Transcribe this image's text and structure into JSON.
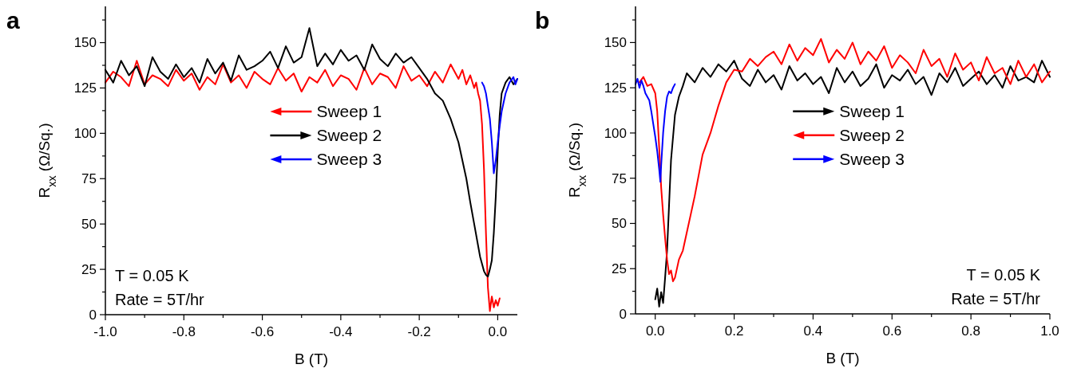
{
  "chart_data": [
    {
      "type": "line",
      "title": "a",
      "xlabel": "B (T)",
      "ylabel": "R$_{xx}$ (Ω/Sq.)",
      "xlim": [
        -1.0,
        0.05
      ],
      "ylim": [
        0,
        170
      ],
      "xticks": [
        {
          "value": -1.0,
          "label": "-1.0"
        },
        {
          "value": -0.9,
          "label": null
        },
        {
          "value": -0.8,
          "label": "-0.8"
        },
        {
          "value": -0.7,
          "label": null
        },
        {
          "value": -0.6,
          "label": "-0.6"
        },
        {
          "value": -0.5,
          "label": null
        },
        {
          "value": -0.4,
          "label": "-0.4"
        },
        {
          "value": -0.3,
          "label": null
        },
        {
          "value": -0.2,
          "label": "-0.2"
        },
        {
          "value": -0.1,
          "label": null
        },
        {
          "value": 0,
          "label": "0.0"
        }
      ],
      "yticks": [
        0,
        {
          "value": 12.5,
          "label": null
        },
        25,
        {
          "value": 37.5,
          "label": null
        },
        50,
        {
          "value": 62.5,
          "label": null
        },
        75,
        {
          "value": 87.5,
          "label": null
        },
        100,
        {
          "value": 112.5,
          "label": null
        },
        125,
        {
          "value": 137.5,
          "label": null
        },
        150,
        {
          "value": 162.5,
          "label": null
        }
      ],
      "legend": "center right",
      "annotations": [
        "T = 0.05 K",
        "Rate = 5T/hr"
      ],
      "series": [
        {
          "name": "Sweep 1",
          "color": "#ff0000",
          "x": [
            0.005,
            0,
            -0.005,
            -0.01,
            -0.015,
            -0.02,
            -0.025,
            -0.03,
            -0.035,
            -0.04,
            -0.045,
            -0.05,
            -0.055,
            -0.06,
            -0.07,
            -0.08,
            -0.09,
            -0.1,
            -0.12,
            -0.14,
            -0.16,
            -0.18,
            -0.2,
            -0.22,
            -0.24,
            -0.26,
            -0.28,
            -0.3,
            -0.32,
            -0.34,
            -0.36,
            -0.38,
            -0.4,
            -0.42,
            -0.44,
            -0.46,
            -0.48,
            -0.5,
            -0.52,
            -0.54,
            -0.56,
            -0.58,
            -0.6,
            -0.62,
            -0.64,
            -0.66,
            -0.68,
            -0.7,
            -0.72,
            -0.74,
            -0.76,
            -0.78,
            -0.8,
            -0.82,
            -0.84,
            -0.86,
            -0.88,
            -0.9,
            -0.92,
            -0.94,
            -0.96,
            -0.98,
            -1.0
          ],
          "values": [
            9,
            5,
            8,
            4,
            10,
            2,
            15,
            45,
            80,
            105,
            118,
            122,
            128,
            125,
            132,
            127,
            135,
            130,
            138,
            128,
            134,
            126,
            132,
            129,
            137,
            125,
            131,
            133,
            127,
            136,
            124,
            130,
            132,
            126,
            135,
            128,
            131,
            123,
            133,
            129,
            136,
            127,
            130,
            134,
            125,
            132,
            128,
            138,
            127,
            131,
            124,
            133,
            129,
            135,
            126,
            130,
            132,
            127,
            140,
            126,
            131,
            134,
            128
          ]
        },
        {
          "name": "Sweep 2",
          "color": "#000000",
          "x": [
            -1.0,
            -0.98,
            -0.96,
            -0.94,
            -0.92,
            -0.9,
            -0.88,
            -0.86,
            -0.84,
            -0.82,
            -0.8,
            -0.78,
            -0.76,
            -0.74,
            -0.72,
            -0.7,
            -0.68,
            -0.66,
            -0.64,
            -0.62,
            -0.6,
            -0.58,
            -0.56,
            -0.54,
            -0.52,
            -0.5,
            -0.48,
            -0.46,
            -0.44,
            -0.42,
            -0.4,
            -0.38,
            -0.36,
            -0.34,
            -0.32,
            -0.3,
            -0.28,
            -0.26,
            -0.24,
            -0.22,
            -0.2,
            -0.18,
            -0.16,
            -0.14,
            -0.12,
            -0.1,
            -0.09,
            -0.08,
            -0.07,
            -0.06,
            -0.05,
            -0.045,
            -0.04,
            -0.035,
            -0.03,
            -0.025,
            -0.02,
            -0.015,
            -0.01,
            -0.005,
            0,
            0.005,
            0.01,
            0.02,
            0.03,
            0.04,
            0.05
          ],
          "values": [
            135,
            128,
            140,
            132,
            137,
            126,
            142,
            134,
            130,
            138,
            131,
            136,
            128,
            141,
            133,
            139,
            129,
            143,
            135,
            137,
            140,
            145,
            136,
            148,
            139,
            142,
            158,
            137,
            144,
            138,
            146,
            140,
            143,
            135,
            149,
            141,
            137,
            144,
            139,
            142,
            136,
            130,
            122,
            118,
            108,
            95,
            85,
            75,
            62,
            50,
            38,
            32,
            28,
            24,
            22,
            21,
            25,
            30,
            45,
            65,
            90,
            110,
            122,
            128,
            131,
            127,
            130
          ]
        },
        {
          "name": "Sweep 3",
          "color": "#0000ff",
          "x": [
            0.05,
            0.045,
            0.04,
            0.03,
            0.02,
            0.01,
            0.005,
            0,
            -0.005,
            -0.01,
            -0.015,
            -0.02,
            -0.025,
            -0.03,
            -0.035,
            -0.04
          ],
          "values": [
            130,
            127,
            131,
            128,
            122,
            112,
            104,
            95,
            85,
            78,
            95,
            108,
            115,
            122,
            126,
            128
          ]
        }
      ]
    },
    {
      "type": "line",
      "title": "b",
      "xlabel": "B (T)",
      "ylabel": "R$_{xx}$ (Ω/Sq.)",
      "xlim": [
        -0.05,
        1.0
      ],
      "ylim": [
        0,
        170
      ],
      "xticks": [
        {
          "value": 0,
          "label": "0.0"
        },
        {
          "value": 0.1,
          "label": null
        },
        {
          "value": 0.2,
          "label": "0.2"
        },
        {
          "value": 0.3,
          "label": null
        },
        {
          "value": 0.4,
          "label": "0.4"
        },
        {
          "value": 0.5,
          "label": null
        },
        {
          "value": 0.6,
          "label": "0.6"
        },
        {
          "value": 0.7,
          "label": null
        },
        {
          "value": 0.8,
          "label": "0.8"
        },
        {
          "value": 0.9,
          "label": null
        },
        {
          "value": 1.0,
          "label": "1.0"
        }
      ],
      "yticks": [
        0,
        {
          "value": 12.5,
          "label": null
        },
        25,
        {
          "value": 37.5,
          "label": null
        },
        50,
        {
          "value": 62.5,
          "label": null
        },
        75,
        {
          "value": 87.5,
          "label": null
        },
        100,
        {
          "value": 112.5,
          "label": null
        },
        125,
        {
          "value": 137.5,
          "label": null
        },
        150,
        {
          "value": 162.5,
          "label": null
        }
      ],
      "legend": "center",
      "annotations": [
        "T = 0.05 K",
        "Rate = 5T/hr"
      ],
      "series": [
        {
          "name": "Sweep 1",
          "color": "#000000",
          "x": [
            0,
            0.005,
            0.01,
            0.015,
            0.02,
            0.025,
            0.03,
            0.035,
            0.04,
            0.05,
            0.06,
            0.07,
            0.08,
            0.1,
            0.12,
            0.14,
            0.16,
            0.18,
            0.2,
            0.22,
            0.24,
            0.26,
            0.28,
            0.3,
            0.32,
            0.34,
            0.36,
            0.38,
            0.4,
            0.42,
            0.44,
            0.46,
            0.48,
            0.5,
            0.52,
            0.54,
            0.56,
            0.58,
            0.6,
            0.62,
            0.64,
            0.66,
            0.68,
            0.7,
            0.72,
            0.74,
            0.76,
            0.78,
            0.8,
            0.82,
            0.84,
            0.86,
            0.88,
            0.9,
            0.92,
            0.94,
            0.96,
            0.98,
            1.0
          ],
          "values": [
            8,
            14,
            4,
            12,
            6,
            20,
            35,
            60,
            85,
            110,
            120,
            126,
            133,
            128,
            136,
            131,
            138,
            134,
            140,
            130,
            126,
            135,
            128,
            132,
            124,
            137,
            129,
            133,
            127,
            131,
            122,
            136,
            128,
            134,
            126,
            130,
            138,
            125,
            132,
            129,
            135,
            127,
            131,
            121,
            133,
            128,
            136,
            126,
            130,
            134,
            127,
            132,
            125,
            137,
            129,
            131,
            128,
            140,
            131
          ]
        },
        {
          "name": "Sweep 2",
          "color": "#ff0000",
          "x": [
            1.0,
            0.98,
            0.96,
            0.94,
            0.92,
            0.9,
            0.88,
            0.86,
            0.84,
            0.82,
            0.8,
            0.78,
            0.76,
            0.74,
            0.72,
            0.7,
            0.68,
            0.66,
            0.64,
            0.62,
            0.6,
            0.58,
            0.56,
            0.54,
            0.52,
            0.5,
            0.48,
            0.46,
            0.44,
            0.42,
            0.4,
            0.38,
            0.36,
            0.34,
            0.32,
            0.3,
            0.28,
            0.26,
            0.24,
            0.22,
            0.2,
            0.18,
            0.16,
            0.14,
            0.12,
            0.1,
            0.09,
            0.08,
            0.07,
            0.06,
            0.05,
            0.045,
            0.04,
            0.035,
            0.03,
            0.025,
            0.02,
            0.015,
            0.01,
            0.005,
            0,
            -0.01,
            -0.02,
            -0.03,
            -0.04
          ],
          "values": [
            134,
            128,
            138,
            131,
            140,
            127,
            136,
            133,
            142,
            129,
            139,
            135,
            144,
            131,
            141,
            137,
            146,
            133,
            139,
            143,
            136,
            148,
            140,
            145,
            138,
            150,
            141,
            146,
            139,
            152,
            143,
            147,
            140,
            149,
            138,
            145,
            142,
            137,
            141,
            134,
            135,
            128,
            115,
            100,
            88,
            65,
            55,
            45,
            35,
            30,
            20,
            18,
            24,
            22,
            30,
            42,
            55,
            70,
            92,
            112,
            122,
            127,
            126,
            131,
            128
          ]
        },
        {
          "name": "Sweep 3",
          "color": "#0000ff",
          "x": [
            -0.05,
            -0.045,
            -0.04,
            -0.035,
            -0.03,
            -0.025,
            -0.02,
            -0.015,
            -0.01,
            -0.005,
            0,
            0.005,
            0.01,
            0.013,
            0.015,
            0.02,
            0.025,
            0.03,
            0.035,
            0.04,
            0.045,
            0.05
          ],
          "values": [
            127,
            130,
            125,
            129,
            126,
            122,
            120,
            118,
            112,
            105,
            98,
            90,
            80,
            73,
            82,
            100,
            112,
            120,
            123,
            122,
            125,
            127
          ]
        }
      ]
    }
  ]
}
